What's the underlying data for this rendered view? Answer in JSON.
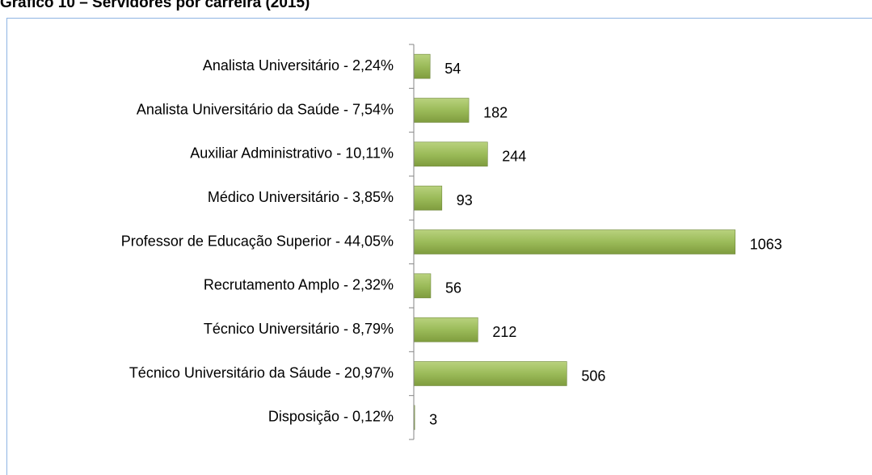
{
  "chart_data": {
    "type": "bar",
    "orientation": "horizontal",
    "title": "Gráfico 10 – Servidores por carreira (2015)",
    "categories": [
      "Analista Universitário -  2,24%",
      "Analista Universitário da Saúde -  7,54%",
      "Auxiliar Administrativo  - 10,11%",
      "Médico Universitário -  3,85%",
      "Professor de Educação Superior - 44,05%",
      "Recrutamento Amplo -  2,32%",
      "Técnico Universitário -  8,79%",
      "Técnico Universitário da Sáude - 20,97%",
      "Disposição -  0,12%"
    ],
    "values": [
      54,
      182,
      244,
      93,
      1063,
      56,
      212,
      506,
      3
    ],
    "color": "#9bbb59",
    "xlim": [
      0,
      1200
    ]
  }
}
